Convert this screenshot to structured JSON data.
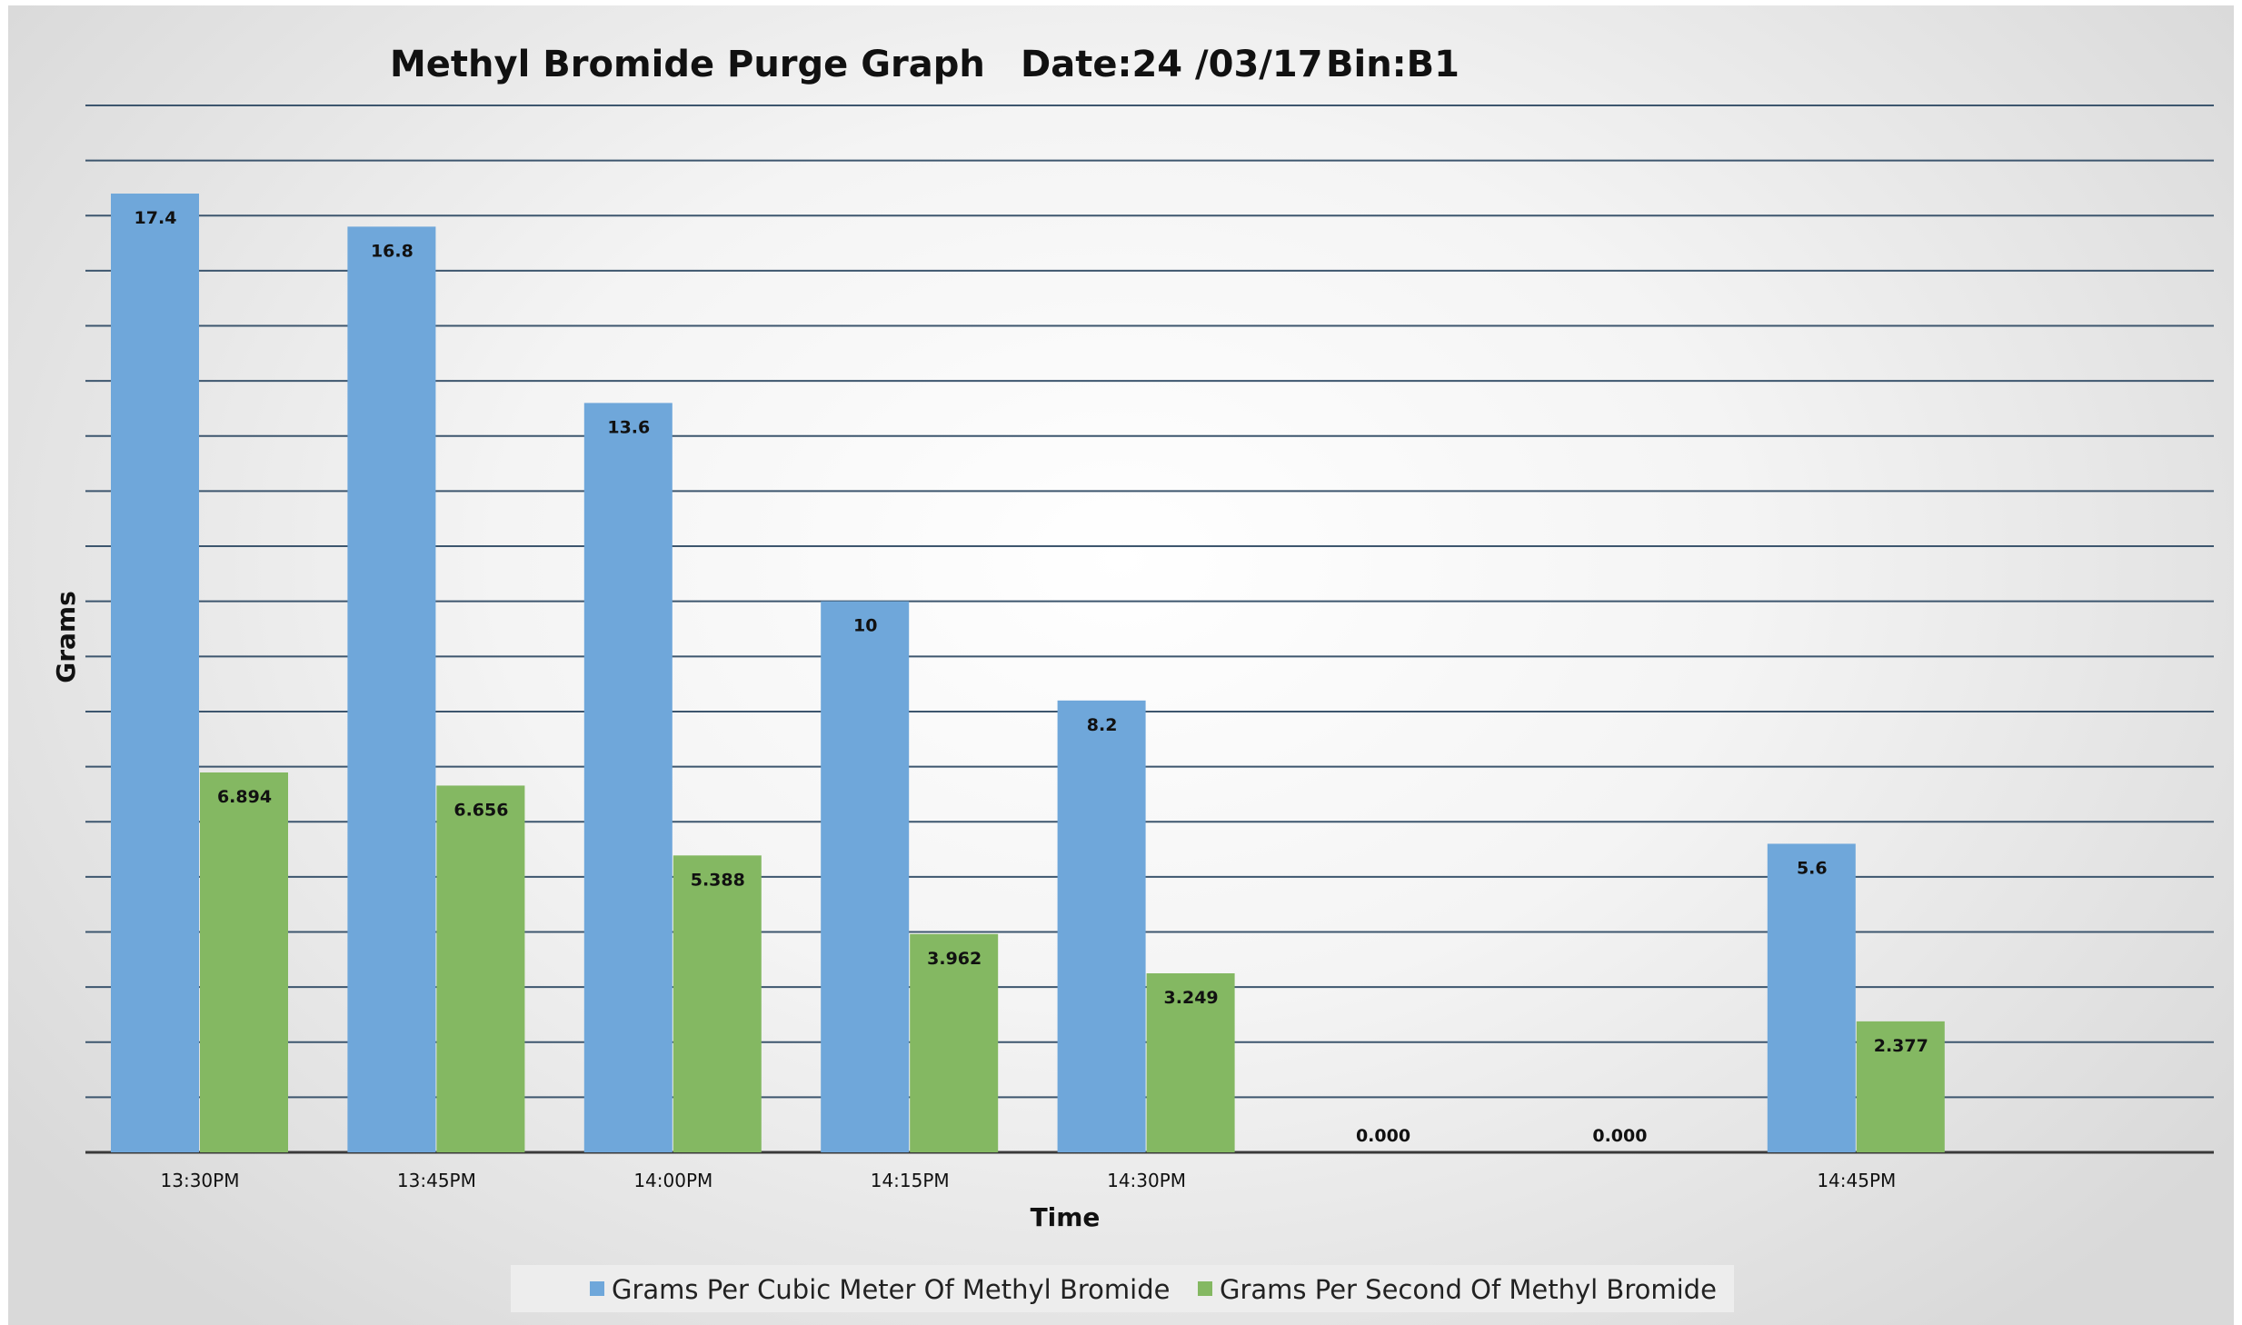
{
  "header": {
    "title": "Methyl Bromide Purge Graph",
    "date": "Date:24 /03/17",
    "bin": "Bin:B1"
  },
  "chart_data": {
    "type": "bar",
    "title": "Methyl Bromide Purge Graph",
    "xlabel": "Time",
    "ylabel": "Grams",
    "ylim": [
      0,
      19
    ],
    "grid": true,
    "legend_position": "bottom",
    "categories": [
      "13:30PM",
      "13:45PM",
      "14:00PM",
      "14:15PM",
      "14:30PM",
      "",
      "",
      "14:45PM"
    ],
    "series": [
      {
        "name": "Grams Per Cubic Meter Of Methyl Bromide",
        "color": "#6fa7da",
        "values": [
          17.4,
          16.8,
          13.6,
          10,
          8.2,
          null,
          null,
          5.6
        ],
        "labels": [
          "17.4",
          "16.8",
          "13.6",
          "10",
          "8.2",
          "0.000",
          "0.000",
          "5.6"
        ]
      },
      {
        "name": "Grams Per Second Of Methyl Bromide",
        "color": "#84b862",
        "values": [
          6.894,
          6.656,
          5.388,
          3.962,
          3.249,
          null,
          null,
          2.377
        ],
        "labels": [
          "6.894",
          "6.656",
          "5.388",
          "3.962",
          "3.249",
          "",
          "",
          "2.377"
        ]
      }
    ]
  }
}
